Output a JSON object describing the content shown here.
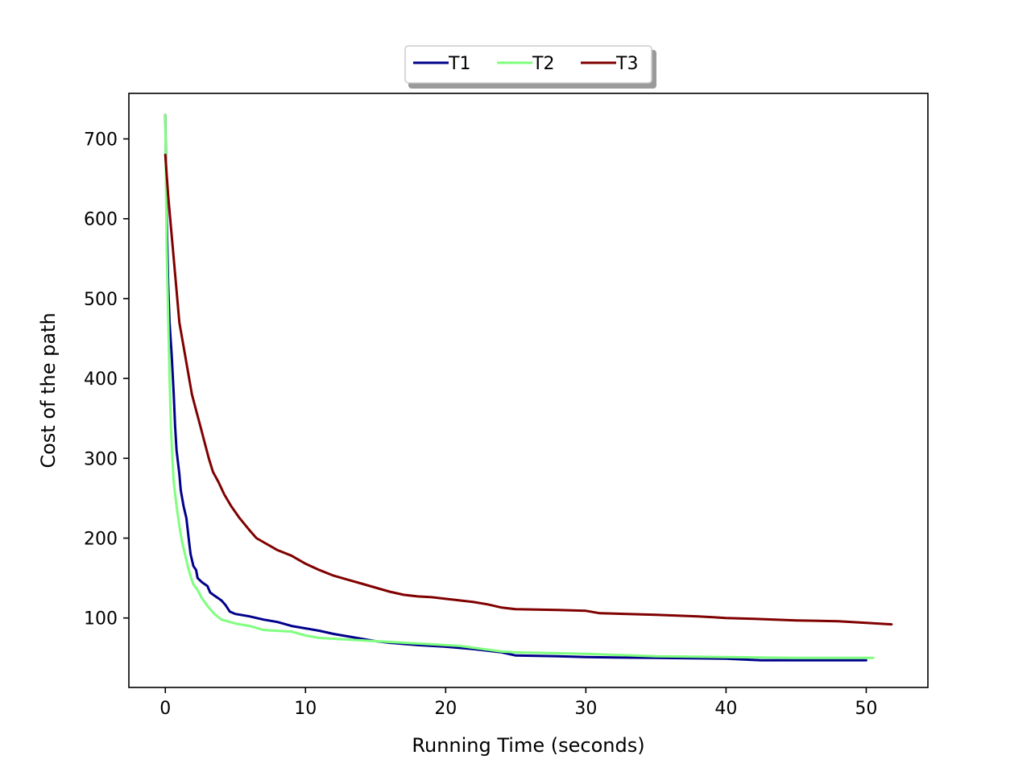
{
  "chart_data": {
    "type": "line",
    "title": "",
    "xlabel": "Running Time (seconds)",
    "ylabel": "Cost of the path",
    "xlim": [
      -2.6,
      54.4
    ],
    "ylim": [
      13,
      757
    ],
    "xticks": [
      0,
      10,
      20,
      30,
      40,
      50
    ],
    "yticks": [
      100,
      200,
      300,
      400,
      500,
      600,
      700
    ],
    "grid": false,
    "legend": {
      "placement": "top-center, above plot",
      "shadow": true,
      "columns": 3
    },
    "series": [
      {
        "name": "T1",
        "color": "#00008b",
        "points": [
          [
            0,
            730
          ],
          [
            0.1,
            600
          ],
          [
            0.2,
            520
          ],
          [
            0.3,
            470
          ],
          [
            0.45,
            430
          ],
          [
            0.6,
            380
          ],
          [
            0.7,
            340
          ],
          [
            0.8,
            310
          ],
          [
            1.0,
            280
          ],
          [
            1.1,
            260
          ],
          [
            1.3,
            240
          ],
          [
            1.5,
            225
          ],
          [
            1.6,
            210
          ],
          [
            1.7,
            195
          ],
          [
            1.8,
            180
          ],
          [
            2.0,
            165
          ],
          [
            2.2,
            160
          ],
          [
            2.3,
            150
          ],
          [
            2.6,
            145
          ],
          [
            3.0,
            140
          ],
          [
            3.2,
            132
          ],
          [
            3.5,
            128
          ],
          [
            4.0,
            122
          ],
          [
            4.3,
            116
          ],
          [
            4.6,
            108
          ],
          [
            5.0,
            105
          ],
          [
            6.0,
            102
          ],
          [
            7.0,
            98
          ],
          [
            8.0,
            95
          ],
          [
            9.0,
            90
          ],
          [
            10.0,
            87
          ],
          [
            11.0,
            84
          ],
          [
            12.0,
            80
          ],
          [
            13.0,
            77
          ],
          [
            14.0,
            74
          ],
          [
            15.0,
            71
          ],
          [
            16.0,
            69
          ],
          [
            18.0,
            66
          ],
          [
            20.0,
            64
          ],
          [
            22.0,
            61
          ],
          [
            24.0,
            57
          ],
          [
            25.0,
            53
          ],
          [
            28.0,
            52
          ],
          [
            30.0,
            51
          ],
          [
            35.0,
            50
          ],
          [
            40.0,
            49
          ],
          [
            42.5,
            47
          ],
          [
            50.0,
            47
          ]
        ]
      },
      {
        "name": "T2",
        "color": "#7fff7f",
        "points": [
          [
            0,
            730
          ],
          [
            0.05,
            640
          ],
          [
            0.1,
            560
          ],
          [
            0.2,
            480
          ],
          [
            0.3,
            400
          ],
          [
            0.4,
            340
          ],
          [
            0.5,
            300
          ],
          [
            0.6,
            270
          ],
          [
            0.8,
            240
          ],
          [
            1.0,
            215
          ],
          [
            1.2,
            195
          ],
          [
            1.4,
            180
          ],
          [
            1.6,
            165
          ],
          [
            1.8,
            152
          ],
          [
            2.0,
            142
          ],
          [
            2.3,
            135
          ],
          [
            2.6,
            125
          ],
          [
            3.0,
            115
          ],
          [
            3.5,
            105
          ],
          [
            4.0,
            98
          ],
          [
            5.0,
            93
          ],
          [
            6.0,
            90
          ],
          [
            7.0,
            85
          ],
          [
            9.0,
            83
          ],
          [
            10.0,
            78
          ],
          [
            11.0,
            75
          ],
          [
            13.0,
            73
          ],
          [
            15.0,
            71
          ],
          [
            18.0,
            68
          ],
          [
            21.0,
            65
          ],
          [
            24.0,
            58
          ],
          [
            25.0,
            57
          ],
          [
            30.0,
            55
          ],
          [
            35.0,
            52
          ],
          [
            40.0,
            51
          ],
          [
            45.0,
            50
          ],
          [
            50.5,
            50
          ]
        ]
      },
      {
        "name": "T3",
        "color": "#800000",
        "points": [
          [
            0,
            680
          ],
          [
            0.2,
            630
          ],
          [
            0.4,
            590
          ],
          [
            0.6,
            550
          ],
          [
            0.8,
            510
          ],
          [
            1.0,
            470
          ],
          [
            1.3,
            440
          ],
          [
            1.6,
            410
          ],
          [
            1.9,
            380
          ],
          [
            2.2,
            360
          ],
          [
            2.5,
            340
          ],
          [
            2.8,
            320
          ],
          [
            3.1,
            300
          ],
          [
            3.4,
            283
          ],
          [
            3.8,
            270
          ],
          [
            4.2,
            255
          ],
          [
            4.7,
            240
          ],
          [
            5.3,
            225
          ],
          [
            6.0,
            210
          ],
          [
            6.5,
            200
          ],
          [
            7.0,
            195
          ],
          [
            7.5,
            190
          ],
          [
            8.0,
            185
          ],
          [
            9.0,
            178
          ],
          [
            10.0,
            168
          ],
          [
            11.0,
            160
          ],
          [
            12.0,
            153
          ],
          [
            13.0,
            148
          ],
          [
            14.0,
            143
          ],
          [
            15.0,
            138
          ],
          [
            16.0,
            133
          ],
          [
            17.0,
            129
          ],
          [
            18.0,
            127
          ],
          [
            19.0,
            126
          ],
          [
            20.0,
            124
          ],
          [
            21.0,
            122
          ],
          [
            22.0,
            120
          ],
          [
            23.0,
            117
          ],
          [
            24.0,
            113
          ],
          [
            25.0,
            111
          ],
          [
            28.0,
            110
          ],
          [
            30.0,
            109
          ],
          [
            31.0,
            106
          ],
          [
            35.0,
            104
          ],
          [
            38.0,
            102
          ],
          [
            40.0,
            100
          ],
          [
            42.0,
            99
          ],
          [
            45.0,
            97
          ],
          [
            48.0,
            96
          ],
          [
            50.0,
            94
          ],
          [
            51.8,
            92
          ]
        ]
      }
    ]
  }
}
